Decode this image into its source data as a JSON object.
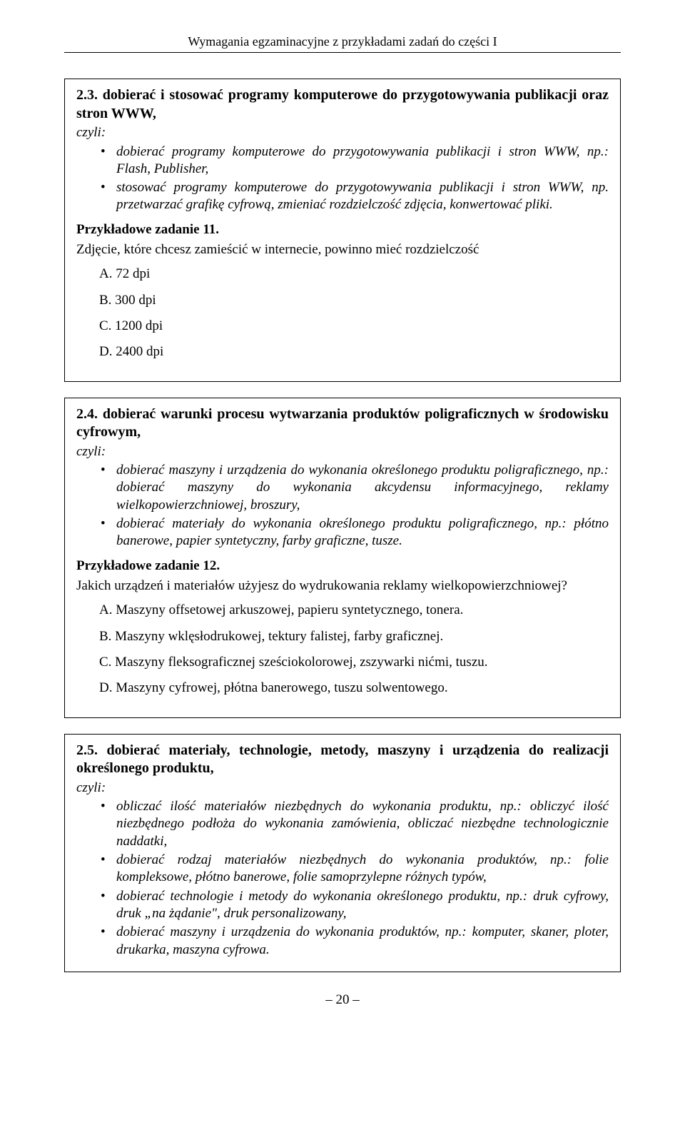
{
  "header": "Wymagania egzaminacyjne z przykładami zadań do części I",
  "section23": {
    "heading": "2.3. dobierać i stosować programy komputerowe do przygotowywania publikacji oraz stron WWW,",
    "czyli": "czyli:",
    "bullets": [
      "dobierać programy komputerowe do przygotowywania publikacji i stron WWW, np.: Flash, Publisher,",
      "stosować programy komputerowe do przygotowywania publikacji i stron WWW, np. przetwarzać grafikę cyfrową, zmieniać rozdzielczość zdjęcia, konwertować pliki."
    ],
    "exampleTitle": "Przykładowe zadanie 11.",
    "exampleQuestion": "Zdjęcie, które chcesz zamieścić w internecie, powinno mieć rozdzielczość",
    "answers": {
      "a": "A.  72 dpi",
      "b": "B.  300 dpi",
      "c": "C.  1200 dpi",
      "d": "D.  2400 dpi"
    }
  },
  "section24": {
    "heading": "2.4. dobierać warunki procesu wytwarzania produktów poligraficznych w środowisku cyfrowym,",
    "czyli": "czyli:",
    "bullets": [
      "dobierać maszyny i urządzenia do wykonania określonego produktu poligraficznego, np.: dobierać maszyny do wykonania akcydensu informacyjnego, reklamy wielkopowierzchniowej, broszury,",
      "dobierać materiały do wykonania określonego produktu poligraficznego, np.: płótno banerowe, papier syntetyczny, farby graficzne, tusze."
    ],
    "exampleTitle": "Przykładowe zadanie 12.",
    "exampleQuestion": "Jakich urządzeń i materiałów użyjesz do wydrukowania reklamy wielkopowierzchniowej?",
    "answers": {
      "a": "A.  Maszyny offsetowej arkuszowej, papieru syntetycznego, tonera.",
      "b": "B.  Maszyny wklęsłodrukowej, tektury falistej, farby graficznej.",
      "c": "C.  Maszyny fleksograficznej sześciokolorowej, zszywarki nićmi, tuszu.",
      "d": "D.  Maszyny cyfrowej, płótna banerowego, tuszu solwentowego."
    }
  },
  "section25": {
    "heading": "2.5. dobierać materiały, technologie, metody, maszyny i urządzenia do realizacji określonego produktu,",
    "czyli": "czyli:",
    "bullets": [
      "obliczać ilość materiałów niezbędnych do wykonania produktu, np.: obliczyć ilość niezbędnego podłoża do wykonania zamówienia, obliczać niezbędne technologicznie naddatki,",
      "dobierać rodzaj materiałów niezbędnych do wykonania produktów, np.: folie kompleksowe, płótno banerowe, folie samoprzylepne różnych typów,",
      "dobierać technologie i metody do wykonania określonego produktu, np.: druk cyfrowy, druk „na żądanie\", druk personalizowany,",
      "dobierać maszyny i urządzenia do wykonania produktów, np.: komputer, skaner, ploter, drukarka, maszyna cyfrowa."
    ]
  },
  "pageNumber": "– 20 –"
}
